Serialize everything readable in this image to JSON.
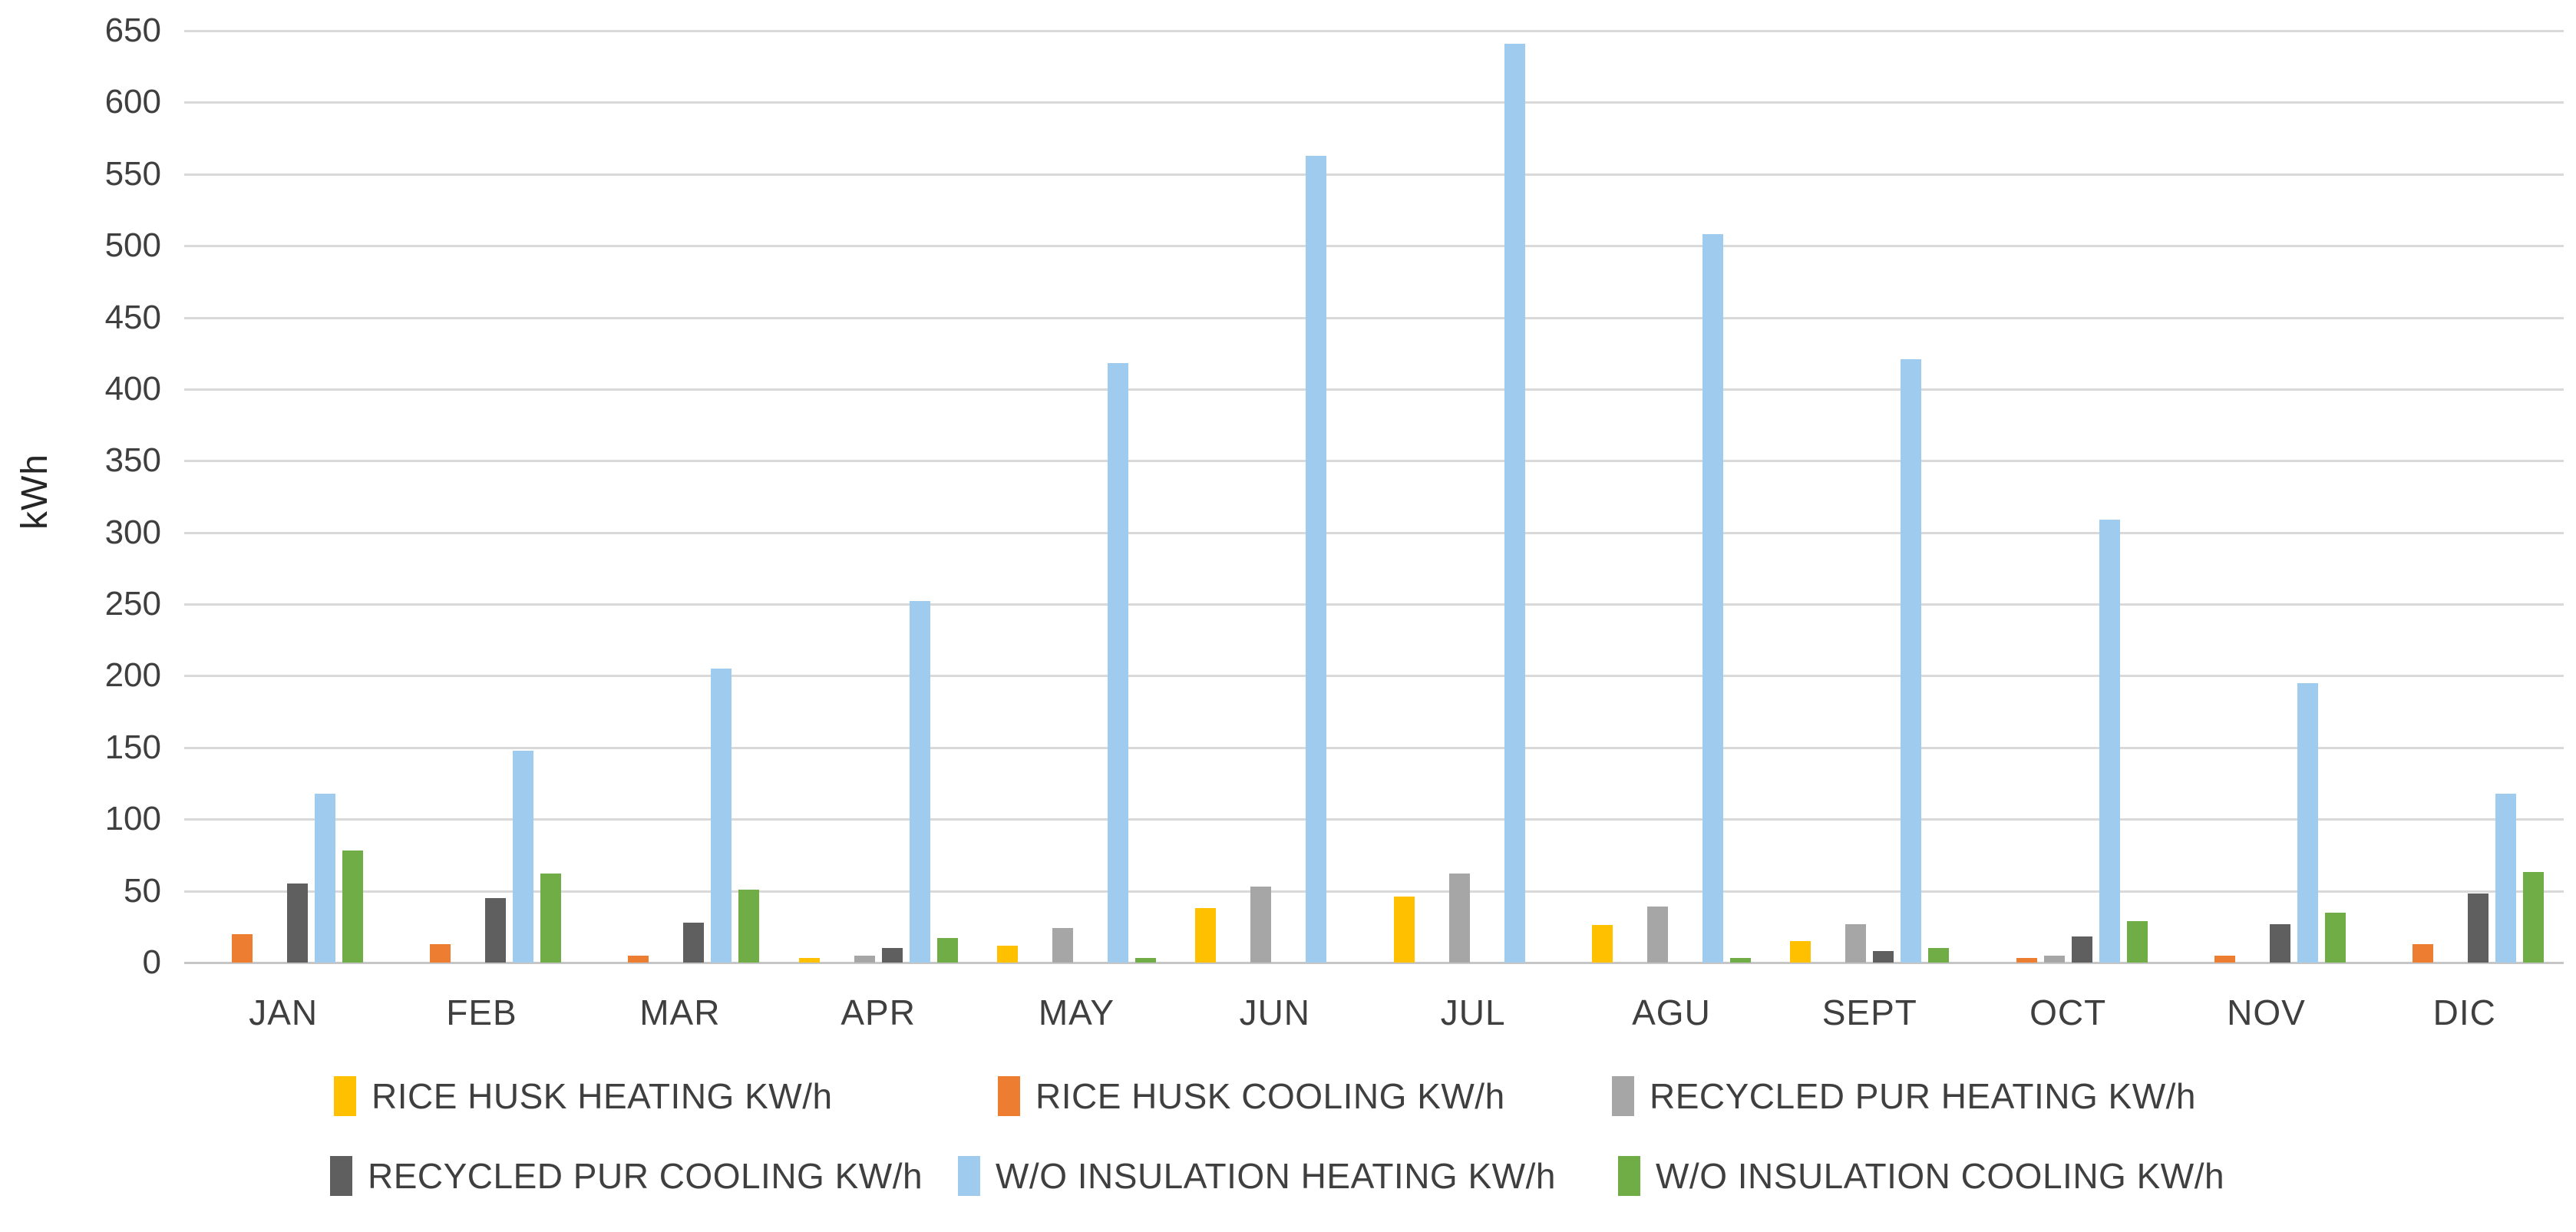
{
  "chart_data": {
    "type": "bar",
    "title": "",
    "xlabel": "",
    "ylabel": "kWh",
    "ylim": [
      0,
      650
    ],
    "ytick_step": 50,
    "y_ticks": [
      0,
      50,
      100,
      150,
      200,
      250,
      300,
      350,
      400,
      450,
      500,
      550,
      600,
      650
    ],
    "grid": true,
    "legend_position": "bottom",
    "categories": [
      "JAN",
      "FEB",
      "MAR",
      "APR",
      "MAY",
      "JUN",
      "JUL",
      "AGU",
      "SEPT",
      "OCT",
      "NOV",
      "DIC"
    ],
    "series": [
      {
        "name": "RICE HUSK HEATING KW/h",
        "color": "#FFC000",
        "values": [
          0,
          0,
          0,
          3,
          12,
          38,
          46,
          26,
          15,
          0,
          0,
          0
        ]
      },
      {
        "name": "RICE HUSK COOLING KW/h",
        "color": "#ED7D31",
        "values": [
          20,
          13,
          5,
          0,
          0,
          0,
          0,
          0,
          0,
          3,
          5,
          13
        ]
      },
      {
        "name": "RECYCLED PUR HEATING KW/h",
        "color": "#A6A6A6",
        "values": [
          0,
          0,
          0,
          5,
          24,
          53,
          62,
          39,
          27,
          5,
          0,
          0
        ]
      },
      {
        "name": "RECYCLED PUR COOLING KW/h",
        "color": "#5F5F5F",
        "values": [
          55,
          45,
          28,
          10,
          0,
          0,
          0,
          0,
          8,
          18,
          27,
          48
        ]
      },
      {
        "name": "W/O INSULATION HEATING KW/h",
        "color": "#9FCBEF",
        "values": [
          118,
          148,
          205,
          252,
          418,
          563,
          641,
          508,
          421,
          309,
          195,
          118
        ]
      },
      {
        "name": "W/O INSULATION COOLING KW/h",
        "color": "#70AD47",
        "values": [
          78,
          62,
          51,
          17,
          3,
          0,
          0,
          3,
          10,
          29,
          35,
          63
        ]
      }
    ],
    "colors": {
      "gridline": "#D9D9D9",
      "axis_text": "#3F3F3F"
    }
  }
}
